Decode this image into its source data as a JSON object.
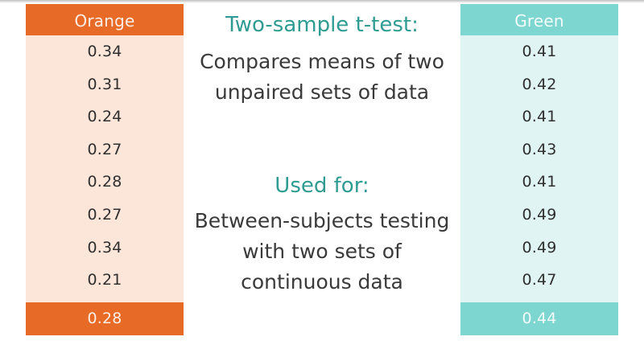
{
  "orange": {
    "header": "Orange",
    "values": [
      "0.34",
      "0.31",
      "0.24",
      "0.27",
      "0.28",
      "0.27",
      "0.34",
      "0.21"
    ],
    "mean": "0.28",
    "color": "#e86a27",
    "bg_color": "#fce5d9"
  },
  "green": {
    "header": "Green",
    "values": [
      "0.41",
      "0.42",
      "0.41",
      "0.43",
      "0.41",
      "0.49",
      "0.49",
      "0.47"
    ],
    "mean": "0.44",
    "color": "#7dd6cf",
    "bg_color": "#dff4f3"
  },
  "ttest": {
    "title": "Two-sample t-test:",
    "lines": [
      "Compares means of two",
      "unpaired sets of data"
    ]
  },
  "used_for": {
    "title": "Used for:",
    "lines": [
      "Between-subjects testing",
      "with two sets of",
      "continuous data"
    ]
  },
  "heading_color": "#2e9c92"
}
